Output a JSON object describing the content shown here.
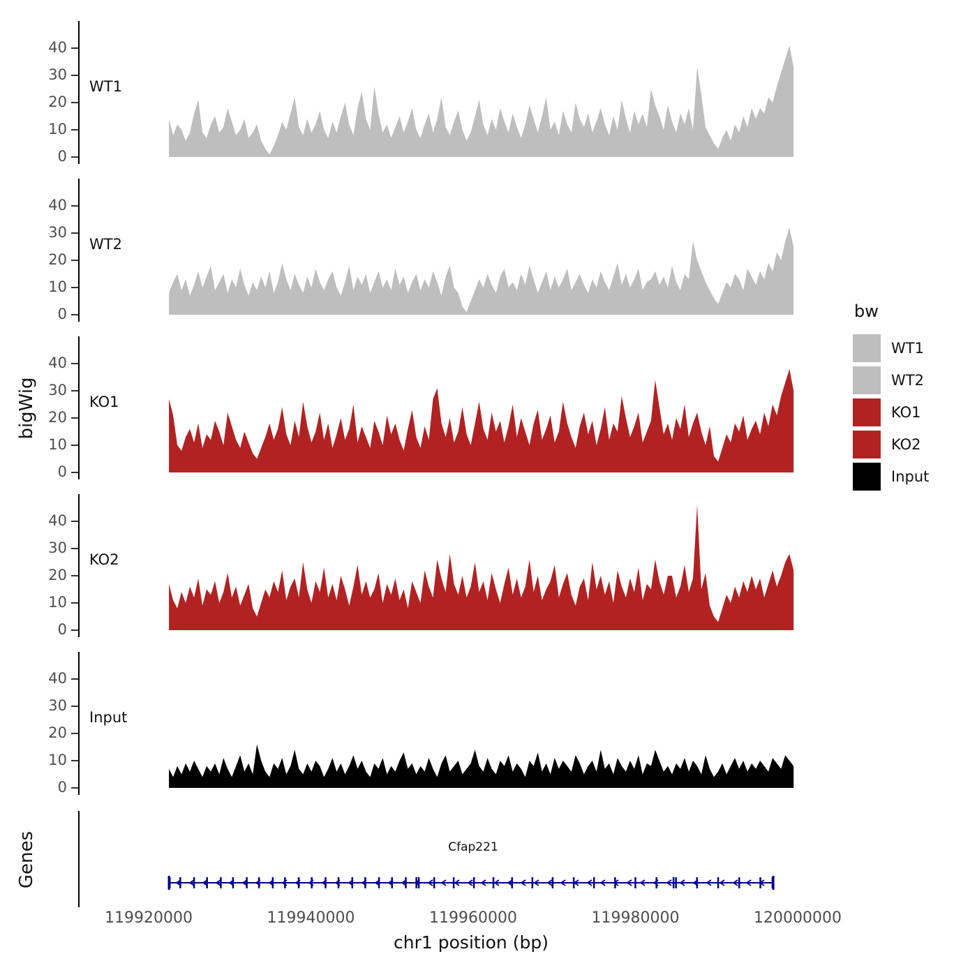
{
  "labels": {
    "y_axis": "bigWig",
    "genes_axis": "Genes",
    "x_axis": "chr1 position (bp)"
  },
  "legend": {
    "title": "bw",
    "entries": [
      {
        "label": "WT1",
        "color": "#BEBEBE"
      },
      {
        "label": "WT2",
        "color": "#BEBEBE"
      },
      {
        "label": "KO1",
        "color": "#B22222"
      },
      {
        "label": "KO2",
        "color": "#B22222"
      },
      {
        "label": "Input",
        "color": "#000000"
      }
    ]
  },
  "x_axis": {
    "ticks": [
      119920000,
      119940000,
      119960000,
      119980000,
      120000000
    ],
    "title": "chr1 position (bp)"
  },
  "y_axis": {
    "ticks": [
      0,
      10,
      20,
      30,
      40
    ]
  },
  "chart_data": {
    "type": "area",
    "title": "",
    "xlabel": "chr1 position (bp)",
    "ylabel": "bigWig",
    "xlim_bp": [
      119911500,
      120005000
    ],
    "x_range_bp": [
      119922500,
      119999500
    ],
    "ylim": [
      0,
      45
    ],
    "grid": false,
    "legend_position": "right",
    "tracks": [
      {
        "name": "WT1",
        "color": "#BEBEBE",
        "values": [
          14,
          8,
          12,
          10,
          6,
          9,
          16,
          21,
          9,
          7,
          12,
          15,
          9,
          11,
          18,
          13,
          8,
          10,
          14,
          7,
          9,
          12,
          6,
          3,
          1,
          4,
          8,
          13,
          10,
          16,
          22,
          11,
          8,
          14,
          9,
          12,
          17,
          10,
          7,
          13,
          9,
          15,
          20,
          12,
          8,
          18,
          24,
          14,
          10,
          26,
          16,
          9,
          12,
          7,
          11,
          15,
          9,
          13,
          18,
          10,
          7,
          12,
          16,
          9,
          14,
          22,
          11,
          8,
          13,
          17,
          10,
          6,
          9,
          15,
          21,
          12,
          8,
          14,
          10,
          18,
          13,
          9,
          16,
          11,
          7,
          12,
          19,
          14,
          9,
          15,
          22,
          10,
          13,
          8,
          17,
          12,
          9,
          20,
          14,
          11,
          16,
          9,
          13,
          18,
          12,
          8,
          15,
          10,
          21,
          14,
          9,
          17,
          12,
          16,
          11,
          25,
          19,
          15,
          10,
          19,
          13,
          9,
          16,
          12,
          18,
          10,
          33,
          23,
          11,
          8,
          5,
          3,
          7,
          10,
          6,
          12,
          9,
          15,
          11,
          18,
          14,
          18,
          16,
          22,
          20,
          26,
          31,
          36,
          41,
          33
        ]
      },
      {
        "name": "WT2",
        "color": "#BEBEBE",
        "values": [
          8,
          12,
          15,
          9,
          13,
          7,
          11,
          16,
          10,
          14,
          18,
          9,
          12,
          15,
          8,
          13,
          10,
          17,
          11,
          7,
          12,
          9,
          14,
          10,
          16,
          8,
          12,
          19,
          13,
          9,
          15,
          11,
          8,
          14,
          10,
          17,
          12,
          9,
          13,
          16,
          10,
          7,
          12,
          18,
          9,
          14,
          11,
          15,
          8,
          12,
          16,
          10,
          13,
          9,
          17,
          11,
          14,
          8,
          12,
          15,
          9,
          13,
          10,
          16,
          12,
          7,
          14,
          18,
          10,
          8,
          3,
          1,
          5,
          9,
          13,
          10,
          15,
          11,
          8,
          14,
          17,
          10,
          12,
          9,
          15,
          11,
          18,
          13,
          8,
          12,
          16,
          9,
          14,
          10,
          13,
          17,
          9,
          12,
          15,
          11,
          8,
          13,
          10,
          16,
          12,
          9,
          14,
          19,
          11,
          15,
          10,
          13,
          17,
          9,
          12,
          13,
          16,
          11,
          14,
          10,
          18,
          12,
          9,
          15,
          13,
          27,
          20,
          16,
          12,
          9,
          6,
          4,
          8,
          12,
          10,
          15,
          13,
          9,
          17,
          14,
          11,
          16,
          13,
          19,
          16,
          23,
          20,
          27,
          32,
          25
        ]
      },
      {
        "name": "KO1",
        "color": "#B22222",
        "values": [
          27,
          21,
          10,
          8,
          13,
          16,
          11,
          18,
          9,
          14,
          12,
          19,
          15,
          10,
          22,
          17,
          12,
          9,
          15,
          11,
          7,
          5,
          9,
          13,
          18,
          12,
          16,
          24,
          14,
          10,
          19,
          13,
          26,
          17,
          11,
          15,
          22,
          12,
          18,
          9,
          14,
          20,
          12,
          16,
          25,
          11,
          17,
          13,
          9,
          19,
          15,
          10,
          21,
          14,
          18,
          12,
          8,
          16,
          23,
          13,
          9,
          17,
          12,
          27,
          31,
          18,
          13,
          20,
          11,
          15,
          24,
          14,
          10,
          18,
          26,
          16,
          12,
          22,
          15,
          19,
          11,
          17,
          25,
          13,
          20,
          15,
          10,
          18,
          23,
          12,
          16,
          21,
          11,
          15,
          26,
          18,
          13,
          9,
          17,
          22,
          14,
          19,
          10,
          16,
          24,
          12,
          18,
          15,
          28,
          20,
          13,
          17,
          22,
          11,
          15,
          19,
          34,
          24,
          14,
          18,
          12,
          20,
          16,
          25,
          13,
          18,
          22,
          15,
          10,
          17,
          6,
          4,
          9,
          14,
          11,
          18,
          15,
          21,
          12,
          16,
          19,
          14,
          22,
          17,
          25,
          21,
          28,
          33,
          38,
          30
        ]
      },
      {
        "name": "KO2",
        "color": "#B22222",
        "values": [
          17,
          11,
          8,
          14,
          10,
          16,
          12,
          19,
          9,
          15,
          13,
          18,
          10,
          14,
          21,
          12,
          16,
          9,
          13,
          17,
          8,
          5,
          10,
          15,
          12,
          18,
          14,
          22,
          11,
          16,
          19,
          12,
          25,
          15,
          10,
          18,
          14,
          23,
          12,
          17,
          11,
          20,
          15,
          9,
          16,
          24,
          13,
          18,
          12,
          15,
          21,
          10,
          17,
          13,
          19,
          11,
          15,
          8,
          18,
          14,
          10,
          22,
          16,
          12,
          26,
          19,
          14,
          28,
          17,
          13,
          20,
          12,
          16,
          25,
          14,
          18,
          11,
          21,
          15,
          10,
          17,
          23,
          13,
          19,
          12,
          16,
          26,
          14,
          20,
          11,
          15,
          18,
          24,
          12,
          17,
          21,
          13,
          9,
          16,
          19,
          11,
          25,
          15,
          20,
          13,
          18,
          10,
          22,
          16,
          12,
          19,
          14,
          23,
          11,
          17,
          15,
          26,
          18,
          13,
          20,
          20,
          12,
          16,
          24,
          14,
          19,
          46,
          15,
          21,
          9,
          5,
          3,
          8,
          13,
          10,
          16,
          12,
          18,
          14,
          20,
          15,
          19,
          12,
          17,
          22,
          16,
          20,
          25,
          28,
          22
        ]
      },
      {
        "name": "Input",
        "color": "#000000",
        "values": [
          7,
          4,
          8,
          5,
          9,
          6,
          10,
          7,
          4,
          8,
          6,
          9,
          5,
          11,
          7,
          4,
          8,
          12,
          6,
          9,
          5,
          16,
          10,
          6,
          4,
          9,
          7,
          11,
          5,
          8,
          14,
          7,
          5,
          9,
          6,
          10,
          8,
          4,
          7,
          11,
          6,
          9,
          5,
          8,
          12,
          7,
          10,
          6,
          4,
          9,
          7,
          11,
          5,
          8,
          6,
          10,
          13,
          7,
          9,
          5,
          8,
          6,
          11,
          7,
          4,
          9,
          12,
          6,
          8,
          10,
          5,
          7,
          9,
          14,
          8,
          6,
          11,
          7,
          5,
          10,
          8,
          12,
          6,
          9,
          7,
          4,
          10,
          8,
          13,
          6,
          9,
          5,
          11,
          7,
          10,
          8,
          6,
          12,
          9,
          5,
          8,
          10,
          6,
          14,
          7,
          9,
          5,
          11,
          8,
          6,
          10,
          7,
          12,
          5,
          9,
          8,
          14,
          10,
          6,
          8,
          5,
          9,
          7,
          11,
          6,
          10,
          8,
          5,
          12,
          7,
          4,
          6,
          9,
          5,
          8,
          11,
          7,
          10,
          6,
          9,
          7,
          10,
          8,
          6,
          11,
          9,
          7,
          12,
          10,
          8
        ]
      }
    ],
    "gene_track": {
      "label": "Genes",
      "genes": [
        {
          "name": "Cfap221",
          "chrom": "chr1",
          "start": 119922500,
          "end": 119997000,
          "strand": "-",
          "color": "#00008B",
          "exons": [
            119922600,
            119923900,
            119925600,
            119927200,
            119928900,
            119930400,
            119932100,
            119933600,
            119935300,
            119936800,
            119938500,
            119940100,
            119941800,
            119943400,
            119945100,
            119946700,
            119948400,
            119950000,
            119951700,
            119953000,
            119953300,
            119955200,
            119957600,
            119960100,
            119962500,
            119964800,
            119967300,
            119969800,
            119972400,
            119974900,
            119977500,
            119980000,
            119982600,
            119984700,
            119985000,
            119987600,
            119990200,
            119992800,
            119995400,
            119996900
          ]
        }
      ]
    }
  }
}
